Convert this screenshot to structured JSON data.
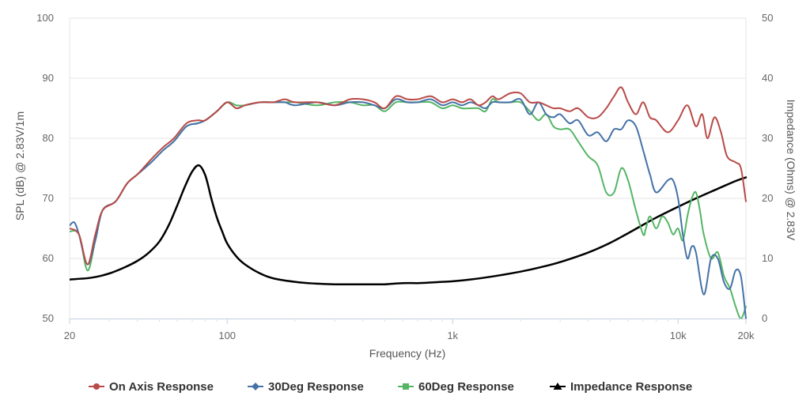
{
  "chart_data": {
    "type": "line",
    "xlabel": "Frequency (Hz)",
    "ylabel_left": "SPL (dB) @ 2.83V/1m",
    "ylabel_right": "Impedance (Ohms) @ 2.83V",
    "x_scale": "log",
    "xlim": [
      20,
      20000
    ],
    "ylim_left": [
      50,
      100
    ],
    "ylim_right": [
      0,
      50
    ],
    "x_ticks": [
      {
        "value": 20,
        "label": "20"
      },
      {
        "value": 100,
        "label": "100"
      },
      {
        "value": 1000,
        "label": "1k"
      },
      {
        "value": 10000,
        "label": "10k"
      },
      {
        "value": 20000,
        "label": "20k"
      }
    ],
    "y_ticks_left": [
      "50",
      "60",
      "70",
      "80",
      "90",
      "100"
    ],
    "y_ticks_right": [
      "0",
      "10",
      "20",
      "30",
      "40",
      "50"
    ],
    "grid": "horizontal",
    "legend_position": "bottom",
    "series": [
      {
        "name": "On Axis Response",
        "axis": "left",
        "color": "#b94a48",
        "marker": "circle",
        "x": [
          20,
          22,
          24,
          26,
          28,
          32,
          36,
          40,
          46,
          52,
          58,
          66,
          74,
          80,
          90,
          100,
          110,
          120,
          140,
          160,
          180,
          200,
          250,
          300,
          350,
          400,
          450,
          500,
          560,
          630,
          700,
          800,
          900,
          1000,
          1100,
          1200,
          1300,
          1400,
          1500,
          1600,
          1800,
          2000,
          2200,
          2400,
          2600,
          2800,
          3000,
          3300,
          3600,
          4000,
          4400,
          4800,
          5200,
          5600,
          6000,
          6500,
          7000,
          7500,
          8000,
          9000,
          10000,
          11000,
          12000,
          12800,
          13500,
          14500,
          15500,
          16500,
          18000,
          19000,
          20000
        ],
        "y": [
          65,
          64,
          59,
          64,
          68,
          69.5,
          72.5,
          74,
          76.5,
          78.5,
          80,
          82.5,
          83,
          83,
          84.5,
          86,
          85,
          85.5,
          86,
          86,
          86.5,
          86,
          86,
          85.5,
          86.5,
          86.5,
          86,
          85,
          87,
          86.5,
          86.5,
          87,
          86,
          86.5,
          86,
          86.5,
          85.5,
          86,
          87,
          86.5,
          87.5,
          87.5,
          86,
          86,
          85.5,
          85,
          85,
          84.5,
          85,
          83.5,
          83.5,
          85,
          87,
          88.5,
          86,
          84,
          86,
          83.5,
          83,
          81,
          83,
          85.5,
          82,
          84,
          80,
          83.5,
          81,
          77,
          76,
          75,
          69.5
        ]
      },
      {
        "name": "30Deg Response",
        "axis": "left",
        "color": "#4572a7",
        "marker": "diamond",
        "x": [
          20,
          21,
          22,
          24,
          26,
          28,
          32,
          36,
          40,
          46,
          52,
          58,
          66,
          74,
          80,
          90,
          100,
          110,
          120,
          140,
          160,
          180,
          200,
          250,
          300,
          350,
          400,
          450,
          500,
          560,
          630,
          700,
          800,
          900,
          1000,
          1100,
          1200,
          1300,
          1400,
          1500,
          1600,
          1800,
          2000,
          2200,
          2400,
          2600,
          2800,
          3000,
          3300,
          3600,
          4000,
          4400,
          4800,
          5200,
          5600,
          6000,
          6500,
          7000,
          7500,
          8000,
          9000,
          9500,
          10000,
          10500,
          11000,
          11500,
          12000,
          13000,
          14000,
          15000,
          16000,
          17000,
          18000,
          19000,
          20000
        ],
        "y": [
          65.5,
          66,
          64,
          59,
          63,
          68,
          69.5,
          72.5,
          74,
          76,
          78,
          79.5,
          82,
          82.5,
          83,
          84.5,
          86,
          85,
          85.5,
          86,
          86,
          86,
          85.5,
          86,
          85.5,
          86,
          86,
          85.5,
          85,
          86.5,
          86,
          86,
          86.5,
          85.5,
          86,
          85.5,
          86,
          85.5,
          85,
          86,
          86,
          86,
          86.5,
          84,
          86,
          84,
          83.5,
          84,
          82.5,
          83,
          80.5,
          81,
          79.5,
          81.5,
          81.5,
          83,
          82,
          78,
          74,
          71,
          73,
          73,
          70,
          64,
          60,
          62,
          61,
          54,
          60,
          60,
          56,
          55,
          58,
          57,
          50
        ]
      },
      {
        "name": "60Deg Response",
        "axis": "left",
        "color": "#55b565",
        "marker": "square",
        "x": [
          20,
          22,
          24,
          26,
          28,
          32,
          36,
          40,
          46,
          52,
          58,
          66,
          74,
          80,
          90,
          100,
          110,
          120,
          140,
          160,
          180,
          200,
          250,
          300,
          350,
          400,
          450,
          500,
          560,
          630,
          700,
          800,
          900,
          1000,
          1100,
          1200,
          1300,
          1400,
          1500,
          1600,
          1800,
          2000,
          2200,
          2400,
          2600,
          2800,
          3000,
          3300,
          3600,
          4000,
          4400,
          4800,
          5200,
          5600,
          6000,
          6500,
          7000,
          7200,
          7500,
          8000,
          8500,
          9000,
          9500,
          10000,
          10500,
          11000,
          11500,
          12000,
          12500,
          13000,
          14000,
          15000,
          16000,
          17000,
          18000,
          19000,
          20000
        ],
        "y": [
          64.5,
          64,
          58,
          63,
          68,
          69.5,
          72.5,
          74,
          76,
          78,
          79.5,
          82,
          82.5,
          83,
          84.5,
          86,
          85.5,
          85.5,
          86,
          86,
          86,
          86,
          85.5,
          86,
          86,
          85.5,
          85.5,
          84.5,
          86,
          86,
          86,
          86,
          85,
          85.5,
          85,
          85,
          85,
          84.5,
          86.5,
          86,
          86,
          86,
          84.5,
          83,
          84,
          82,
          81.5,
          81.5,
          79.5,
          77,
          75.5,
          71,
          71,
          75,
          73,
          68,
          64,
          65,
          67,
          65,
          67,
          66,
          64,
          65,
          63,
          67,
          70,
          71,
          68,
          64,
          60,
          61,
          57,
          55,
          52,
          50,
          52
        ]
      },
      {
        "name": "Impedance Response",
        "axis": "right",
        "color": "#000000",
        "marker": "triangle",
        "x": [
          20,
          25,
          30,
          35,
          40,
          45,
          50,
          55,
          60,
          65,
          70,
          75,
          80,
          85,
          90,
          95,
          100,
          110,
          120,
          140,
          160,
          200,
          250,
          300,
          400,
          500,
          600,
          700,
          800,
          1000,
          1200,
          1500,
          2000,
          2500,
          3000,
          4000,
          5000,
          6000,
          7000,
          8000,
          10000,
          12000,
          15000,
          18000,
          20000
        ],
        "y": [
          6.5,
          6.8,
          7.5,
          8.5,
          9.6,
          11,
          12.8,
          15.5,
          18.8,
          22,
          24.5,
          25.5,
          23.8,
          20,
          16.8,
          14.5,
          12.5,
          10.3,
          9,
          7.5,
          6.7,
          6.1,
          5.8,
          5.7,
          5.7,
          5.7,
          5.9,
          5.9,
          6,
          6.2,
          6.5,
          7,
          7.8,
          8.6,
          9.4,
          11,
          12.6,
          14.2,
          15.6,
          16.8,
          18.6,
          20,
          21.6,
          22.9,
          23.5
        ]
      }
    ]
  }
}
